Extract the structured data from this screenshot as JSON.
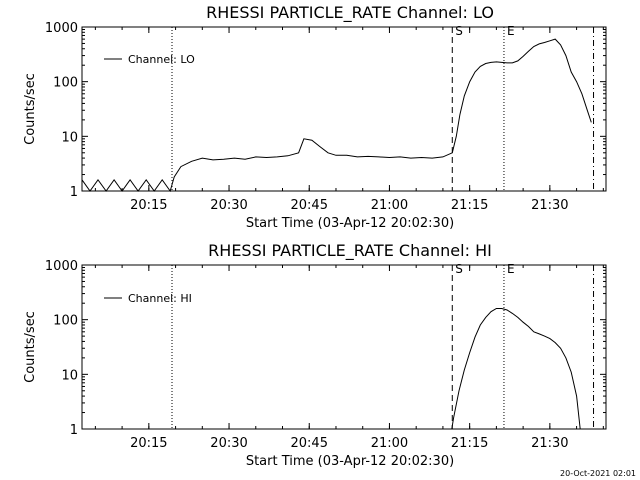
{
  "footer": {
    "timestamp": "20-Oct-2021 02:01"
  },
  "chart_data": [
    {
      "type": "line",
      "title": "RHESSI PARTICLE_RATE Channel: LO",
      "xlabel": "Start Time (03-Apr-12 20:02:30)",
      "ylabel": "Counts/sec",
      "legend": {
        "placement": "top-left",
        "label": "Channel: LO"
      },
      "y_scale": "log",
      "xlim": [
        "20:02:30",
        "21:40:30"
      ],
      "ylim": [
        1,
        1000
      ],
      "x_ticks": [
        "20:15",
        "20:30",
        "20:45",
        "21:00",
        "21:15",
        "21:30"
      ],
      "y_ticks": [
        "1",
        "10",
        "100",
        "1000"
      ],
      "markers": [
        {
          "label": "",
          "time": "20:19:20",
          "style": "dotted"
        },
        {
          "label": "S",
          "time": "21:11:45",
          "style": "dashed"
        },
        {
          "label": "E",
          "time": "21:21:25",
          "style": "dotted"
        },
        {
          "label": "",
          "time": "21:38:10",
          "style": "dashdot"
        }
      ],
      "series": [
        {
          "name": "Channel: LO",
          "x": [
            "20:02:30",
            "20:04:00",
            "20:05:30",
            "20:07:00",
            "20:08:30",
            "20:10:00",
            "20:11:30",
            "20:13:00",
            "20:14:30",
            "20:16:00",
            "20:17:30",
            "20:19:00",
            "20:19:45",
            "20:21:00",
            "20:23:00",
            "20:25:00",
            "20:27:00",
            "20:29:00",
            "20:31:00",
            "20:33:00",
            "20:35:00",
            "20:37:00",
            "20:39:00",
            "20:41:00",
            "20:43:00",
            "20:44:00",
            "20:45:30",
            "20:47:00",
            "20:48:30",
            "20:50:00",
            "20:52:00",
            "20:54:00",
            "20:56:00",
            "20:58:00",
            "21:00:00",
            "21:02:00",
            "21:04:00",
            "21:06:00",
            "21:08:00",
            "21:10:00",
            "21:11:45",
            "21:12:30",
            "21:13:10",
            "21:14:00",
            "21:15:00",
            "21:16:00",
            "21:17:00",
            "21:18:00",
            "21:19:00",
            "21:20:00",
            "21:21:00",
            "21:22:00",
            "21:23:00",
            "21:24:00",
            "21:25:00",
            "21:26:00",
            "21:27:00",
            "21:28:00",
            "21:29:00",
            "21:30:00",
            "21:31:00",
            "21:32:00",
            "21:33:00",
            "21:34:00",
            "21:35:00",
            "21:36:00",
            "21:37:00",
            "21:37:45"
          ],
          "values": [
            1.6,
            1,
            1.6,
            1,
            1.6,
            1,
            1.6,
            1,
            1.6,
            1,
            1.6,
            1,
            1.8,
            2.8,
            3.5,
            4,
            3.7,
            3.8,
            4,
            3.8,
            4.2,
            4.1,
            4.2,
            4.4,
            5,
            9,
            8.5,
            6.5,
            5,
            4.5,
            4.5,
            4.2,
            4.3,
            4.2,
            4.1,
            4.2,
            4,
            4.1,
            4,
            4.2,
            5,
            10,
            25,
            55,
            100,
            150,
            190,
            215,
            225,
            230,
            225,
            220,
            220,
            240,
            290,
            360,
            440,
            490,
            520,
            560,
            600,
            470,
            300,
            150,
            100,
            60,
            30,
            18
          ]
        }
      ]
    },
    {
      "type": "line",
      "title": "RHESSI PARTICLE_RATE Channel: HI",
      "xlabel": "Start Time (03-Apr-12 20:02:30)",
      "ylabel": "Counts/sec",
      "legend": {
        "placement": "top-left",
        "label": "Channel: HI"
      },
      "y_scale": "log",
      "xlim": [
        "20:02:30",
        "21:40:30"
      ],
      "ylim": [
        1,
        1000
      ],
      "x_ticks": [
        "20:15",
        "20:30",
        "20:45",
        "21:00",
        "21:15",
        "21:30"
      ],
      "y_ticks": [
        "1",
        "10",
        "100",
        "1000"
      ],
      "markers": [
        {
          "label": "",
          "time": "20:19:20",
          "style": "dotted"
        },
        {
          "label": "S",
          "time": "21:11:45",
          "style": "dashed"
        },
        {
          "label": "E",
          "time": "21:21:25",
          "style": "dotted"
        },
        {
          "label": "",
          "time": "21:38:10",
          "style": "dashdot"
        }
      ],
      "series": [
        {
          "name": "Channel: HI",
          "x": [
            "21:11:40",
            "21:12:00",
            "21:13:00",
            "21:14:00",
            "21:15:00",
            "21:16:00",
            "21:17:00",
            "21:18:00",
            "21:19:00",
            "21:20:00",
            "21:21:00",
            "21:22:00",
            "21:23:00",
            "21:24:00",
            "21:25:00",
            "21:26:00",
            "21:27:00",
            "21:28:00",
            "21:29:00",
            "21:30:00",
            "21:31:00",
            "21:32:00",
            "21:33:00",
            "21:34:00",
            "21:35:00",
            "21:35:40"
          ],
          "values": [
            1,
            1.6,
            5,
            12,
            25,
            48,
            80,
            110,
            140,
            160,
            160,
            150,
            130,
            110,
            90,
            75,
            60,
            55,
            50,
            45,
            38,
            30,
            20,
            11,
            4,
            1
          ]
        }
      ]
    }
  ]
}
